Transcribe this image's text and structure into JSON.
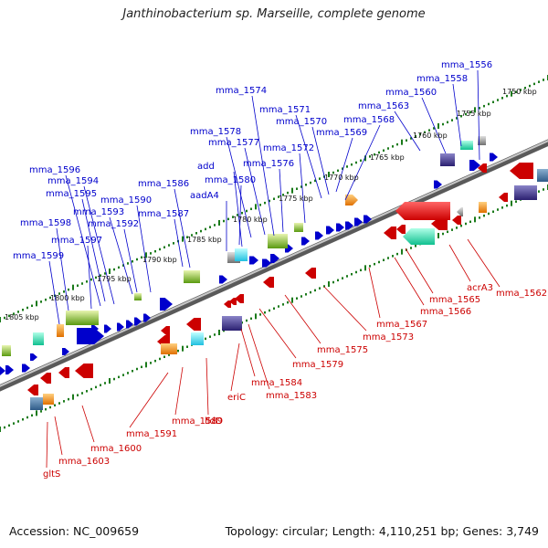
{
  "title": "Janthinobacterium sp. Marseille, complete genome",
  "accession": "Accession: NC_009659",
  "topology": "Topology: circular; Length: 4,110,251 bp; Genes: 3,749",
  "colors": {
    "forward": "#0000cc",
    "reverse": "#cc0000"
  },
  "kbp_labels": [
    "1750 kbp",
    "1755 kbp",
    "1760 kbp",
    "1765 kbp",
    "1770 kbp",
    "1775 kbp",
    "1780 kbp",
    "1785 kbp",
    "1790 kbp",
    "1795 kbp",
    "1800 kbp",
    "1805 kbp"
  ],
  "forward_labels": [
    "mma_1556",
    "mma_1558",
    "mma_1560",
    "mma_1563",
    "mma_1568",
    "mma_1569",
    "mma_1570",
    "mma_1571",
    "mma_1572",
    "mma_1574",
    "mma_1576",
    "mma_1577",
    "mma_1578",
    "add",
    "mma_1580",
    "aadA4",
    "mma_1586",
    "mma_1587",
    "mma_1590",
    "mma_1592",
    "mma_1593",
    "mma_1594",
    "mma_1595",
    "mma_1596",
    "mma_1597",
    "mma_1598",
    "mma_1599"
  ],
  "reverse_labels": [
    "mma_1562",
    "acrA3",
    "mma_1565",
    "mma_1566",
    "mma_1567",
    "mma_1573",
    "mma_1575",
    "mma_1579",
    "mma_1583",
    "mma_1584",
    "eriC",
    "lldD",
    "mma_1589",
    "mma_1591",
    "mma_1600",
    "mma_1603",
    "gltS"
  ]
}
